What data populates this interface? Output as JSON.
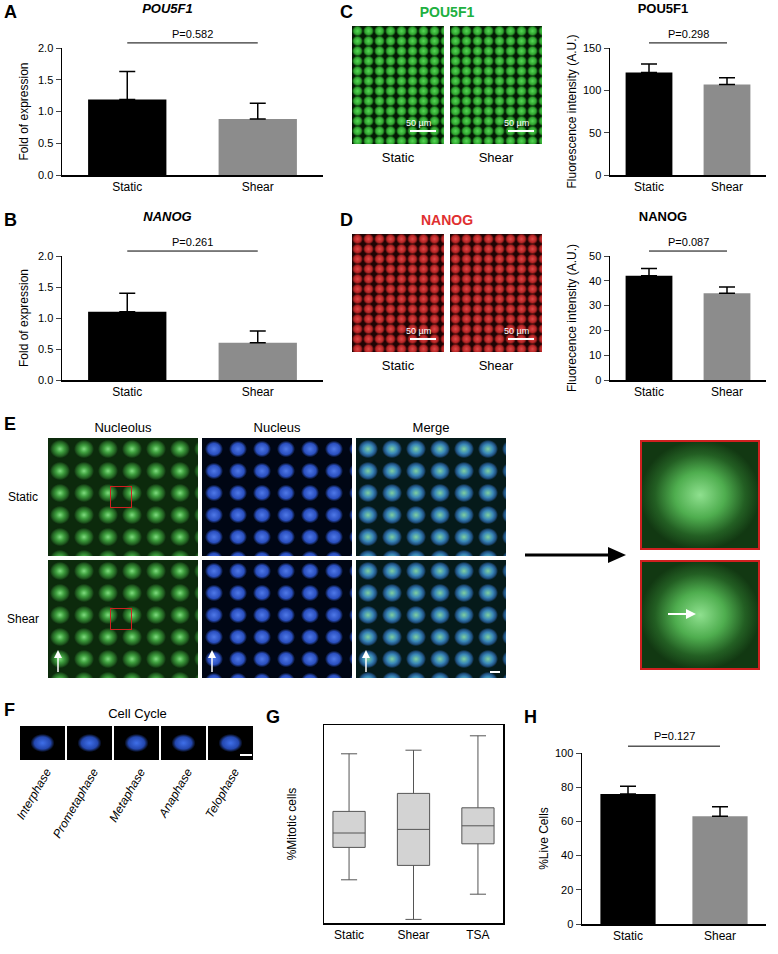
{
  "chart_data": [
    {
      "panel": "A",
      "type": "bar",
      "title": "POU5F1",
      "ylabel": "Fold of expression",
      "categories": [
        "Static",
        "Shear"
      ],
      "values": [
        1.19,
        0.88
      ],
      "errors": [
        0.44,
        0.25
      ],
      "colors": [
        "#000000",
        "#8c8c8c"
      ],
      "ylim": [
        0,
        2.0
      ],
      "yticks": [
        {
          "value": 0,
          "label": "0.0"
        },
        0.5,
        {
          "value": 1,
          "label": "1.0"
        },
        1.5,
        {
          "value": 2,
          "label": "2.0"
        }
      ],
      "annotations": [
        "P=0.582"
      ]
    },
    {
      "panel": "B",
      "type": "bar",
      "title": "NANOG",
      "ylabel": "Fold of expression",
      "categories": [
        "Static",
        "Shear"
      ],
      "values": [
        1.1,
        0.6
      ],
      "errors": [
        0.3,
        0.19
      ],
      "colors": [
        "#000000",
        "#8c8c8c"
      ],
      "ylim": [
        0,
        2.0
      ],
      "yticks": [
        {
          "value": 0,
          "label": "0.0"
        },
        0.5,
        {
          "value": 1,
          "label": "1.0"
        },
        1.5,
        {
          "value": 2,
          "label": "2.0"
        }
      ],
      "annotations": [
        "P=0.261"
      ]
    },
    {
      "type": "bar",
      "title": "POU5F1",
      "ylabel": "Fluorescence intensity (A.U.)",
      "categories": [
        "Static",
        "Shear"
      ],
      "values": [
        121,
        107
      ],
      "errors": [
        10,
        8
      ],
      "colors": [
        "#000000",
        "#8c8c8c"
      ],
      "ylim": [
        0,
        150
      ],
      "yticks": [
        0,
        50,
        100,
        150
      ],
      "annotations": [
        "P=0.298"
      ]
    },
    {
      "type": "bar",
      "title": "NANOG",
      "ylabel": "Fluorecence intensity (A.U.)",
      "categories": [
        "Static",
        "Shear"
      ],
      "values": [
        42,
        35
      ],
      "errors": [
        3,
        2.5
      ],
      "colors": [
        "#000000",
        "#8c8c8c"
      ],
      "ylim": [
        0,
        50
      ],
      "yticks": [
        0,
        10,
        20,
        30,
        40,
        50
      ],
      "annotations": [
        "P=0.087"
      ]
    },
    {
      "panel": "G",
      "type": "box",
      "ylabel": "%Mitotic cells",
      "categories": [
        "Static",
        "Shear",
        "TSA"
      ],
      "min": [
        1.2,
        0.1,
        0.8
      ],
      "q1": [
        2.1,
        1.6,
        2.2
      ],
      "median": [
        2.5,
        2.6,
        2.7
      ],
      "q3": [
        3.1,
        3.6,
        3.2
      ],
      "max": [
        4.7,
        4.8,
        5.2
      ],
      "color": "#d3d3d3",
      "ylim": [
        0,
        5.5
      ],
      "tick_labels": "x"
    },
    {
      "panel": "H",
      "type": "bar",
      "ylabel": "%Live Cells",
      "categories": [
        "Static",
        "Shear"
      ],
      "values": [
        76,
        63
      ],
      "errors": [
        4.5,
        5.5
      ],
      "colors": [
        "#000000",
        "#8c8c8c"
      ],
      "ylim": [
        0,
        100
      ],
      "yticks": [
        0,
        20,
        40,
        60,
        80,
        100
      ],
      "annotations": [
        "P=0.127"
      ]
    }
  ],
  "images": {
    "C": {
      "panel": "C",
      "title": "POU5F1",
      "labels": [
        "Static",
        "Shear"
      ],
      "scale_bar": "50 µm"
    },
    "D": {
      "panel": "D",
      "title": "NANOG",
      "labels": [
        "Static",
        "Shear"
      ],
      "scale_bar": "50 µm"
    },
    "E": {
      "panel": "E",
      "columns": [
        "Nucleolus",
        "Nucleus",
        "Merge"
      ],
      "rows": [
        "Static",
        "Shear"
      ]
    },
    "F": {
      "panel": "F",
      "title": "Cell Cycle",
      "phases": [
        "Interphase",
        "Prometaphase",
        "Metaphase",
        "Anaphase",
        "Telophase"
      ]
    }
  }
}
